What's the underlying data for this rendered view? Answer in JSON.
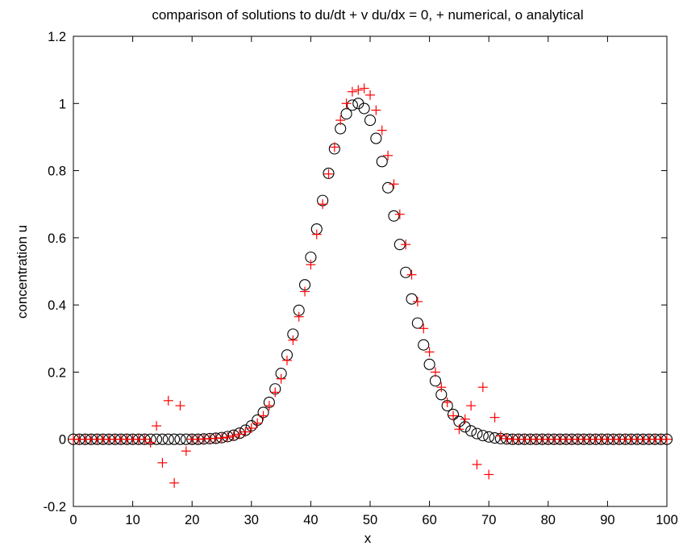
{
  "chart_data": {
    "type": "scatter",
    "title": "comparison of solutions to du/dt + v du/dx = 0, + numerical, o analytical",
    "xlabel": "x",
    "ylabel": "concentration u",
    "xlim": [
      0,
      100
    ],
    "ylim": [
      -0.2,
      1.2
    ],
    "xticks": [
      0,
      10,
      20,
      30,
      40,
      50,
      60,
      70,
      80,
      90,
      100
    ],
    "xtick_labels": [
      "0",
      "10",
      "20",
      "30",
      "40",
      "50",
      "60",
      "70",
      "80",
      "90",
      "100"
    ],
    "yticks": [
      -0.2,
      0,
      0.2,
      0.4,
      0.6,
      0.8,
      1.0,
      1.2
    ],
    "ytick_labels": [
      "-0.2",
      "0",
      "0.2",
      "0.4",
      "0.6",
      "0.8",
      "1",
      "1.2"
    ],
    "grid": false,
    "series": [
      {
        "marker": "o",
        "color": "#000000",
        "x": [
          0,
          1,
          2,
          3,
          4,
          5,
          6,
          7,
          8,
          9,
          10,
          11,
          12,
          13,
          14,
          15,
          16,
          17,
          18,
          19,
          20,
          21,
          22,
          23,
          24,
          25,
          26,
          27,
          28,
          29,
          30,
          31,
          32,
          33,
          34,
          35,
          36,
          37,
          38,
          39,
          40,
          41,
          42,
          43,
          44,
          45,
          46,
          47,
          48,
          49,
          50,
          51,
          52,
          53,
          54,
          55,
          56,
          57,
          58,
          59,
          60,
          61,
          62,
          63,
          64,
          65,
          66,
          67,
          68,
          69,
          70,
          71,
          72,
          73,
          74,
          75,
          76,
          77,
          78,
          79,
          80,
          81,
          82,
          83,
          84,
          85,
          86,
          87,
          88,
          89,
          90,
          91,
          92,
          93,
          94,
          95,
          96,
          97,
          98,
          99,
          100
        ],
        "y": [
          0,
          0,
          0,
          0,
          0,
          0,
          0,
          0,
          0,
          0,
          0,
          0,
          0,
          0,
          0,
          0,
          0,
          0,
          0,
          0,
          0,
          0,
          0.001,
          0.002,
          0.003,
          0.005,
          0.008,
          0.012,
          0.018,
          0.027,
          0.04,
          0.057,
          0.08,
          0.11,
          0.15,
          0.196,
          0.251,
          0.313,
          0.384,
          0.46,
          0.542,
          0.626,
          0.711,
          0.792,
          0.865,
          0.925,
          0.969,
          0.995,
          1.0,
          0.985,
          0.95,
          0.896,
          0.827,
          0.749,
          0.665,
          0.58,
          0.497,
          0.418,
          0.346,
          0.281,
          0.223,
          0.174,
          0.133,
          0.1,
          0.074,
          0.053,
          0.037,
          0.025,
          0.017,
          0.011,
          0.007,
          0.004,
          0.002,
          0.001,
          0,
          0,
          0,
          0,
          0,
          0,
          0,
          0,
          0,
          0,
          0,
          0,
          0,
          0,
          0,
          0,
          0,
          0,
          0,
          0,
          0,
          0,
          0,
          0,
          0,
          0,
          0
        ]
      },
      {
        "marker": "+",
        "color": "#ff0000",
        "x": [
          0,
          1,
          2,
          3,
          4,
          5,
          6,
          7,
          8,
          9,
          10,
          11,
          12,
          13,
          14,
          15,
          16,
          17,
          18,
          19,
          20,
          21,
          22,
          23,
          24,
          25,
          26,
          27,
          28,
          29,
          30,
          31,
          32,
          33,
          34,
          35,
          36,
          37,
          38,
          39,
          40,
          41,
          42,
          43,
          44,
          45,
          46,
          47,
          48,
          49,
          50,
          51,
          52,
          53,
          54,
          55,
          56,
          57,
          58,
          59,
          60,
          61,
          62,
          63,
          64,
          65,
          66,
          67,
          68,
          69,
          70,
          71,
          72,
          73,
          74,
          75,
          76,
          77,
          78,
          79,
          80,
          81,
          82,
          83,
          84,
          85,
          86,
          87,
          88,
          89,
          90,
          91,
          92,
          93,
          94,
          95,
          96,
          97,
          98,
          99,
          100
        ],
        "y": [
          0,
          0,
          0,
          0,
          0,
          0,
          0,
          0,
          0,
          0,
          0,
          0,
          0,
          -0.01,
          0.04,
          -0.07,
          0.115,
          -0.13,
          0.1,
          -0.035,
          0,
          0,
          0.001,
          0.002,
          0.003,
          0.004,
          0.006,
          0.01,
          0.015,
          0.022,
          0.033,
          0.048,
          0.07,
          0.1,
          0.14,
          0.18,
          0.235,
          0.295,
          0.365,
          0.44,
          0.52,
          0.61,
          0.7,
          0.79,
          0.87,
          0.95,
          1.0,
          1.035,
          1.04,
          1.045,
          1.025,
          0.98,
          0.92,
          0.845,
          0.76,
          0.67,
          0.58,
          0.49,
          0.41,
          0.33,
          0.26,
          0.2,
          0.155,
          0.11,
          0.07,
          0.03,
          0.06,
          0.1,
          -0.075,
          0.155,
          -0.105,
          0.065,
          0.01,
          0.002,
          0,
          0,
          0,
          0,
          0,
          0,
          0,
          0,
          0,
          0,
          0,
          0,
          0,
          0,
          0,
          0,
          0,
          0,
          0,
          0,
          0,
          0,
          0,
          0,
          0,
          0,
          0
        ]
      }
    ]
  }
}
